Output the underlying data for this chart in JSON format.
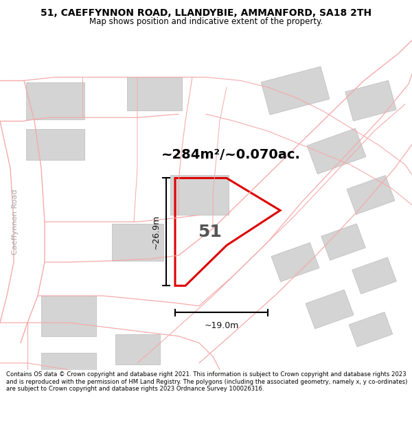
{
  "title_line1": "51, CAEFFYNNON ROAD, LLANDYBIE, AMMANFORD, SA18 2TH",
  "title_line2": "Map shows position and indicative extent of the property.",
  "area_label": "~284m²/~0.070ac.",
  "label_51": "51",
  "dim_vertical": "~26.9m",
  "dim_horizontal": "~19.0m",
  "road_label": "Caeffynnon Road",
  "footer": "Contains OS data © Crown copyright and database right 2021. This information is subject to Crown copyright and database rights 2023 and is reproduced with the permission of HM Land Registry. The polygons (including the associated geometry, namely x, y co-ordinates) are subject to Crown copyright and database rights 2023 Ordnance Survey 100026316.",
  "bg_color": "#ffffff",
  "building_color": "#d4d4d4",
  "building_edge": "#bbbbbb",
  "road_line_color": "#f5aaaa",
  "road_outline_color": "#e8c8c8",
  "plot_color": "#dd0000",
  "dim_color": "#111111",
  "road_name_color": "#aaaaaa",
  "title_fontsize": 10,
  "subtitle_fontsize": 8.5,
  "footer_fontsize": 6.1,
  "area_fontsize": 14,
  "label_fontsize": 18,
  "dim_fontsize": 9,
  "road_name_fontsize": 8
}
